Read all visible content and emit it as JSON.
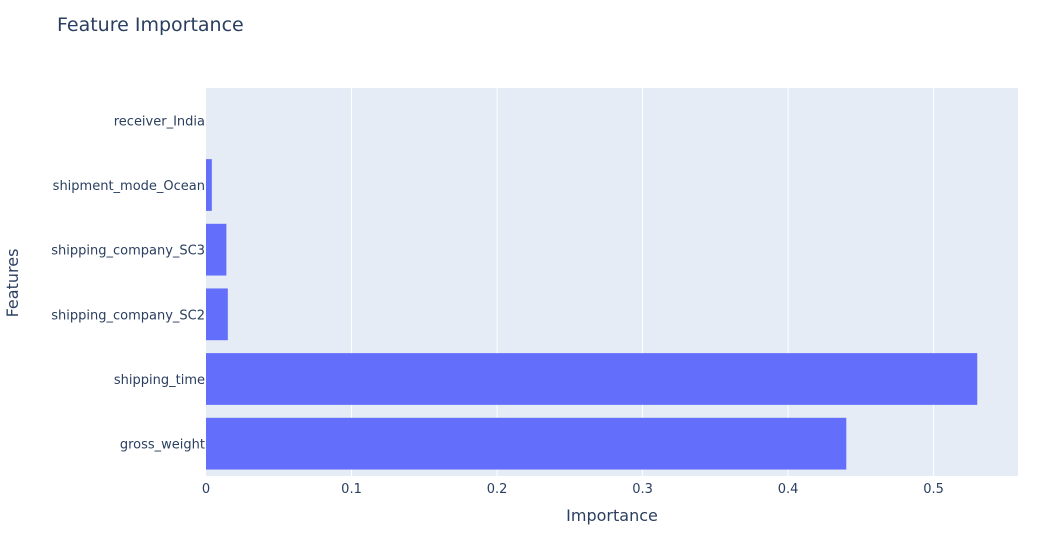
{
  "chart_data": {
    "type": "bar",
    "orientation": "horizontal",
    "title": "Feature Importance",
    "xlabel": "Importance",
    "ylabel": "Features",
    "categories": [
      "gross_weight",
      "shipping_time",
      "shipping_company_SC2",
      "shipping_company_SC3",
      "shipment_mode_Ocean",
      "receiver_India"
    ],
    "values": [
      0.44,
      0.53,
      0.015,
      0.014,
      0.004,
      0.0
    ],
    "xlim": [
      0,
      0.558
    ],
    "xticks": [
      "0",
      "0.1",
      "0.2",
      "0.3",
      "0.4",
      "0.5"
    ],
    "xtick_values": [
      0,
      0.1,
      0.2,
      0.3,
      0.4,
      0.5
    ],
    "grid": true,
    "bar_color": "#636efa",
    "plot_bg": "#e5ecf6"
  }
}
